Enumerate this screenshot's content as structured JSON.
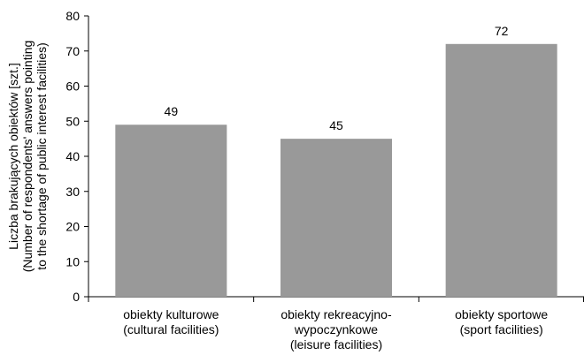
{
  "chart_data": {
    "type": "bar",
    "categories": [
      [
        "obiekty kulturowe",
        "(cultural facilities)"
      ],
      [
        "obiekty rekreacyjno-",
        "wypoczynkowe",
        "(leisure facilities)"
      ],
      [
        "obiekty sportowe",
        "(sport facilities)"
      ]
    ],
    "values": [
      49,
      45,
      72
    ],
    "data_labels": [
      "49",
      "45",
      "72"
    ],
    "ylabel": [
      "Liczba brakujących obiektów [szt.]",
      "(Number of respondents' answers pointing",
      "to the shortage of public interest facilities)"
    ],
    "ylim": [
      0,
      80
    ],
    "yticks": [
      0,
      10,
      20,
      30,
      40,
      50,
      60,
      70,
      80
    ],
    "bar_color": "#999999",
    "grid": false,
    "legend": "none"
  }
}
